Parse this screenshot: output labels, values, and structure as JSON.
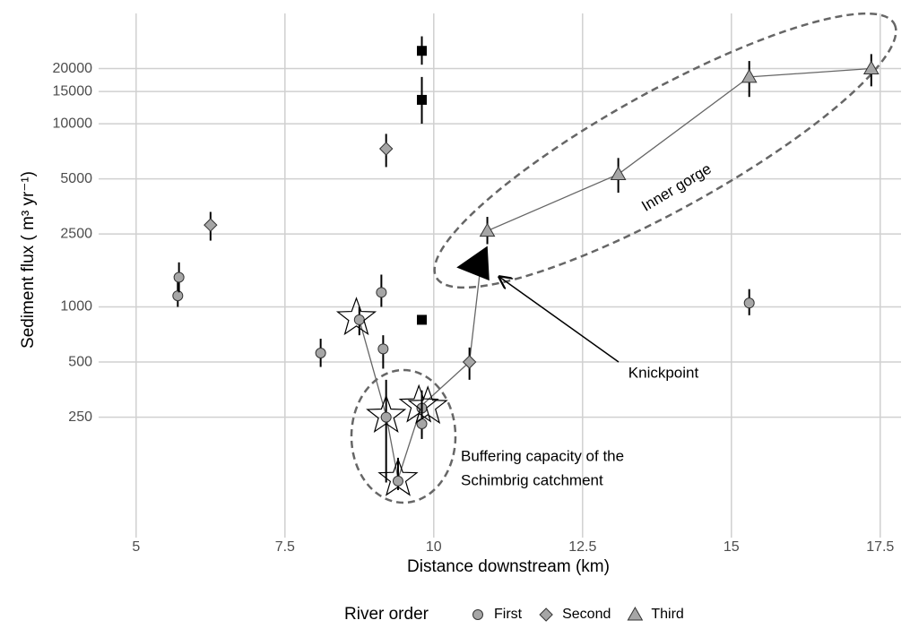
{
  "chart_data": {
    "type": "scatter",
    "x_label": "Distance downstream (km)",
    "y_label": "Sediment flux ( m³ yr⁻¹)",
    "ylog": true,
    "grid": true,
    "xlim": [
      4.37,
      17.85
    ],
    "ylim": [
      55,
      40000
    ],
    "xticks": [
      5,
      7.5,
      10,
      12.5,
      15,
      17.5
    ],
    "yticks": [
      250,
      500,
      1000,
      2500,
      5000,
      10000,
      15000,
      20000
    ],
    "legend_title": "River order",
    "legend_position": "bottom",
    "series": [
      {
        "name": "First",
        "marker": "circle",
        "color": "#a6a6a6",
        "x": [
          5.7,
          5.72,
          8.1,
          8.75,
          9.12,
          9.15,
          9.2,
          9.4,
          9.8,
          9.8,
          15.3
        ],
        "values": [
          1150,
          1450,
          560,
          850,
          1200,
          590,
          250,
          112,
          280,
          230,
          1050
        ],
        "lower": [
          1000,
          1200,
          470,
          700,
          1000,
          460,
          110,
          100,
          200,
          190,
          900
        ],
        "upper": [
          1500,
          1750,
          670,
          1000,
          1500,
          700,
          400,
          150,
          350,
          300,
          1250
        ]
      },
      {
        "name": "Second",
        "marker": "diamond",
        "color": "#a6a6a6",
        "x": [
          6.25,
          9.2,
          10.6
        ],
        "values": [
          2800,
          7300,
          500
        ],
        "lower": [
          2300,
          5800,
          400
        ],
        "upper": [
          3300,
          8800,
          600
        ]
      },
      {
        "name": "Third",
        "marker": "triangle",
        "color": "#a6a6a6",
        "x": [
          10.9,
          13.1,
          15.3,
          17.35
        ],
        "values": [
          2600,
          5300,
          18000,
          20000
        ],
        "lower": [
          2200,
          4200,
          14000,
          16000
        ],
        "upper": [
          3100,
          6500,
          22000,
          24000
        ]
      }
    ],
    "unlabeled_series": [
      {
        "marker": "square",
        "color": "#000000",
        "x": [
          9.8,
          9.8,
          9.8
        ],
        "values": [
          25000,
          13500,
          850
        ],
        "lower": [
          21000,
          10000,
          850
        ],
        "upper": [
          30000,
          18000,
          850
        ]
      },
      {
        "marker": "star",
        "color": "#000000",
        "x": [
          8.7,
          9.2,
          9.4,
          9.75,
          9.9
        ],
        "values": [
          870,
          255,
          115,
          290,
          285
        ]
      },
      {
        "marker": "knickpoint",
        "color": "#000000",
        "x": [
          10.7
        ],
        "values": [
          1700
        ]
      }
    ],
    "connectors": [
      {
        "x": [
          8.75,
          9.2,
          9.4,
          9.8,
          10.6,
          10.78
        ],
        "values": [
          850,
          255,
          115,
          290,
          500,
          1600
        ]
      },
      {
        "x": [
          10.9,
          13.1,
          15.3,
          17.35
        ],
        "values": [
          2600,
          5300,
          18000,
          20000
        ]
      }
    ],
    "annotations": {
      "inner_gorge": "Inner gorge",
      "knickpoint": "Knickpoint",
      "buffering": [
        "Buffering capacity of the",
        "Schimbrig catchment"
      ]
    }
  }
}
